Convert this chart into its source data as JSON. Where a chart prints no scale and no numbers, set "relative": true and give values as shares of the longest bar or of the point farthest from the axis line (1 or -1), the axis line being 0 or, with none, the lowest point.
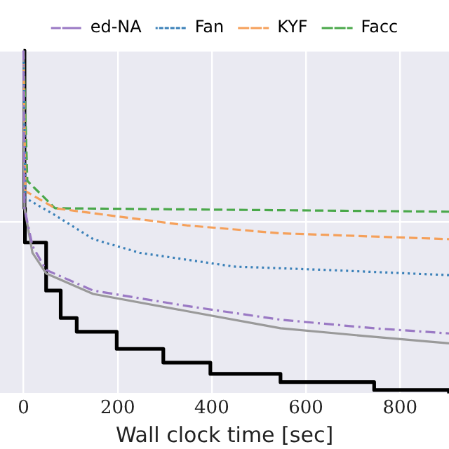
{
  "chart_data": {
    "type": "line",
    "relative": true,
    "xlabel": "Wall clock time [sec]",
    "xlim": [
      -50,
      904
    ],
    "xticks": [
      0,
      200,
      400,
      600,
      800
    ],
    "grid": true,
    "legend": "top",
    "marker": "none",
    "series": [
      {
        "name": "ed-NA",
        "color": "#9a79c4",
        "line_style": "dashdot",
        "x": [
          0,
          2,
          19,
          48,
          148,
          347,
          546,
          745,
          904
        ],
        "values": [
          1,
          0.54,
          0.43,
          0.36,
          0.3,
          0.255,
          0.215,
          0.19,
          0.175
        ]
      },
      {
        "name": "Fan",
        "color": "#3a80b8",
        "line_style": "dotted",
        "x": [
          0,
          4,
          67,
          148,
          247,
          447,
          646,
          904
        ],
        "values": [
          1,
          0.57,
          0.52,
          0.45,
          0.41,
          0.37,
          0.36,
          0.345
        ]
      },
      {
        "name": "KYF",
        "color": "#f5a05a",
        "line_style": "dashed",
        "x": [
          0,
          4,
          67,
          347,
          546,
          904
        ],
        "values": [
          1,
          0.59,
          0.54,
          0.49,
          0.467,
          0.45
        ]
      },
      {
        "name": "Facc",
        "color": "#4aa84a",
        "line_style": "dashed",
        "x": [
          0,
          8,
          67,
          904
        ],
        "values": [
          1,
          0.62,
          0.54,
          0.53
        ]
      },
      {
        "color": "#9a9a9a",
        "line_style": "solid",
        "x": [
          0,
          2,
          19,
          48,
          148,
          347,
          546,
          745,
          904
        ],
        "values": [
          1,
          0.54,
          0.41,
          0.35,
          0.29,
          0.24,
          0.19,
          0.165,
          0.146
        ]
      },
      {
        "type": "step",
        "color": "#000000",
        "line_style": "solid",
        "x": [
          0,
          2,
          3,
          48,
          79,
          113,
          198,
          297,
          397,
          546,
          745,
          904
        ],
        "values": [
          1,
          0.54,
          0.44,
          0.3,
          0.22,
          0.18,
          0.13,
          0.09,
          0.057,
          0.033,
          0.01,
          0
        ]
      }
    ]
  }
}
